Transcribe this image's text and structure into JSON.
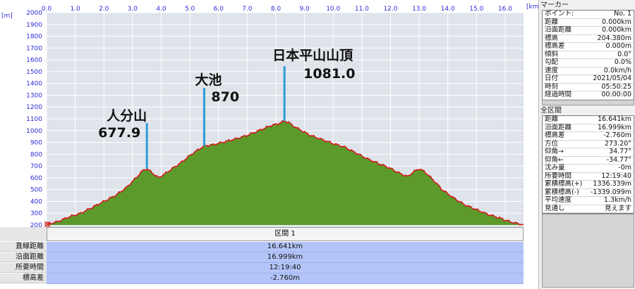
{
  "chart_data": {
    "type": "area",
    "x_unit": "[km]",
    "y_unit": "[m]",
    "xlim": [
      0,
      16.641
    ],
    "ylim": [
      200,
      2000
    ],
    "x_ticks": [
      "0.0",
      "1.0",
      "2.0",
      "3.0",
      "4.0",
      "5.0",
      "6.0",
      "7.0",
      "8.0",
      "9.0",
      "10.0",
      "11.0",
      "12.0",
      "13.0",
      "14.0",
      "15.0",
      "16.0"
    ],
    "y_ticks": [
      "200",
      "300",
      "400",
      "500",
      "600",
      "700",
      "800",
      "900",
      "1000",
      "1100",
      "1200",
      "1300",
      "1400",
      "1500",
      "1600",
      "1700",
      "1800",
      "1900",
      "2000"
    ],
    "grid": true,
    "fill_color": "#5c9a2c",
    "line_color": "#d21d1d",
    "background_color": "#dfe3ea",
    "profile": {
      "x": [
        0.0,
        0.4,
        0.8,
        1.2,
        1.6,
        2.0,
        2.4,
        2.8,
        3.0,
        3.2,
        3.35,
        3.5,
        3.7,
        3.9,
        4.1,
        4.4,
        4.7,
        5.0,
        5.3,
        5.5,
        5.8,
        6.2,
        6.6,
        7.0,
        7.4,
        7.8,
        8.1,
        8.3,
        8.45,
        8.6,
        8.9,
        9.2,
        9.6,
        10.0,
        10.4,
        10.8,
        11.2,
        11.6,
        12.0,
        12.3,
        12.6,
        12.8,
        13.0,
        13.2,
        13.5,
        13.8,
        14.2,
        14.6,
        15.0,
        15.4,
        15.8,
        16.2,
        16.641
      ],
      "y": [
        204,
        230,
        270,
        300,
        350,
        400,
        450,
        520,
        570,
        620,
        660,
        677.9,
        640,
        600,
        630,
        680,
        730,
        790,
        840,
        870,
        880,
        905,
        930,
        960,
        1000,
        1040,
        1060,
        1081,
        1070,
        1040,
        1000,
        960,
        925,
        890,
        860,
        810,
        760,
        720,
        680,
        640,
        610,
        650,
        677,
        650,
        580,
        500,
        430,
        370,
        330,
        290,
        260,
        225,
        201
      ]
    },
    "annotations": [
      {
        "name": "人分山",
        "value": "677.9",
        "x": 3.5
      },
      {
        "name": "大池",
        "value": "870",
        "x": 5.5
      },
      {
        "name": "日本平山山頂",
        "value": "1081.0",
        "x": 8.3
      }
    ],
    "start_marker": "start"
  },
  "section_table": {
    "header": "区間 1",
    "rows": [
      {
        "label": "直線距離",
        "value": "16.641km"
      },
      {
        "label": "沿面距離",
        "value": "16.999km"
      },
      {
        "label": "所要時間",
        "value": "12:19:40"
      },
      {
        "label": "標高差",
        "value": "-2.760m"
      }
    ]
  },
  "marker_panel": {
    "title": "マーカー",
    "rows": [
      {
        "label": "ポイント:",
        "value": "No. 1"
      },
      {
        "label": "距離",
        "value": "0.000km"
      },
      {
        "label": "沿面距離",
        "value": "0.000km"
      },
      {
        "label": "標高",
        "value": "204.380m"
      },
      {
        "label": "標高差",
        "value": "0.000m"
      },
      {
        "label": "傾斜",
        "value": "0.0°"
      },
      {
        "label": "勾配",
        "value": "0.0%"
      },
      {
        "label": "速度",
        "value": "0.0km/h"
      },
      {
        "label": "日付",
        "value": "2021/05/04"
      },
      {
        "label": "時刻",
        "value": "05:50:25"
      },
      {
        "label": "経過時間",
        "value": "00:00:00"
      }
    ]
  },
  "summary_panel": {
    "title": "全区間",
    "rows": [
      {
        "label": "距離",
        "value": "16.641km"
      },
      {
        "label": "沿面距離",
        "value": "16.999km"
      },
      {
        "label": "標高差",
        "value": "-2.760m"
      },
      {
        "label": "方位",
        "value": "273.20°"
      },
      {
        "label": "仰角→",
        "value": "34.77°"
      },
      {
        "label": "仰角←",
        "value": "-34.77°"
      },
      {
        "label": "沈み量",
        "value": "-0m"
      },
      {
        "label": "所要時間",
        "value": "12:19:40"
      },
      {
        "label": "累積標高(+)",
        "value": "1336.339m"
      },
      {
        "label": "累積標高(-)",
        "value": "-1339.099m"
      },
      {
        "label": "平均速度",
        "value": "1.3km/h"
      },
      {
        "label": "見通し",
        "value": "見えます"
      }
    ]
  }
}
